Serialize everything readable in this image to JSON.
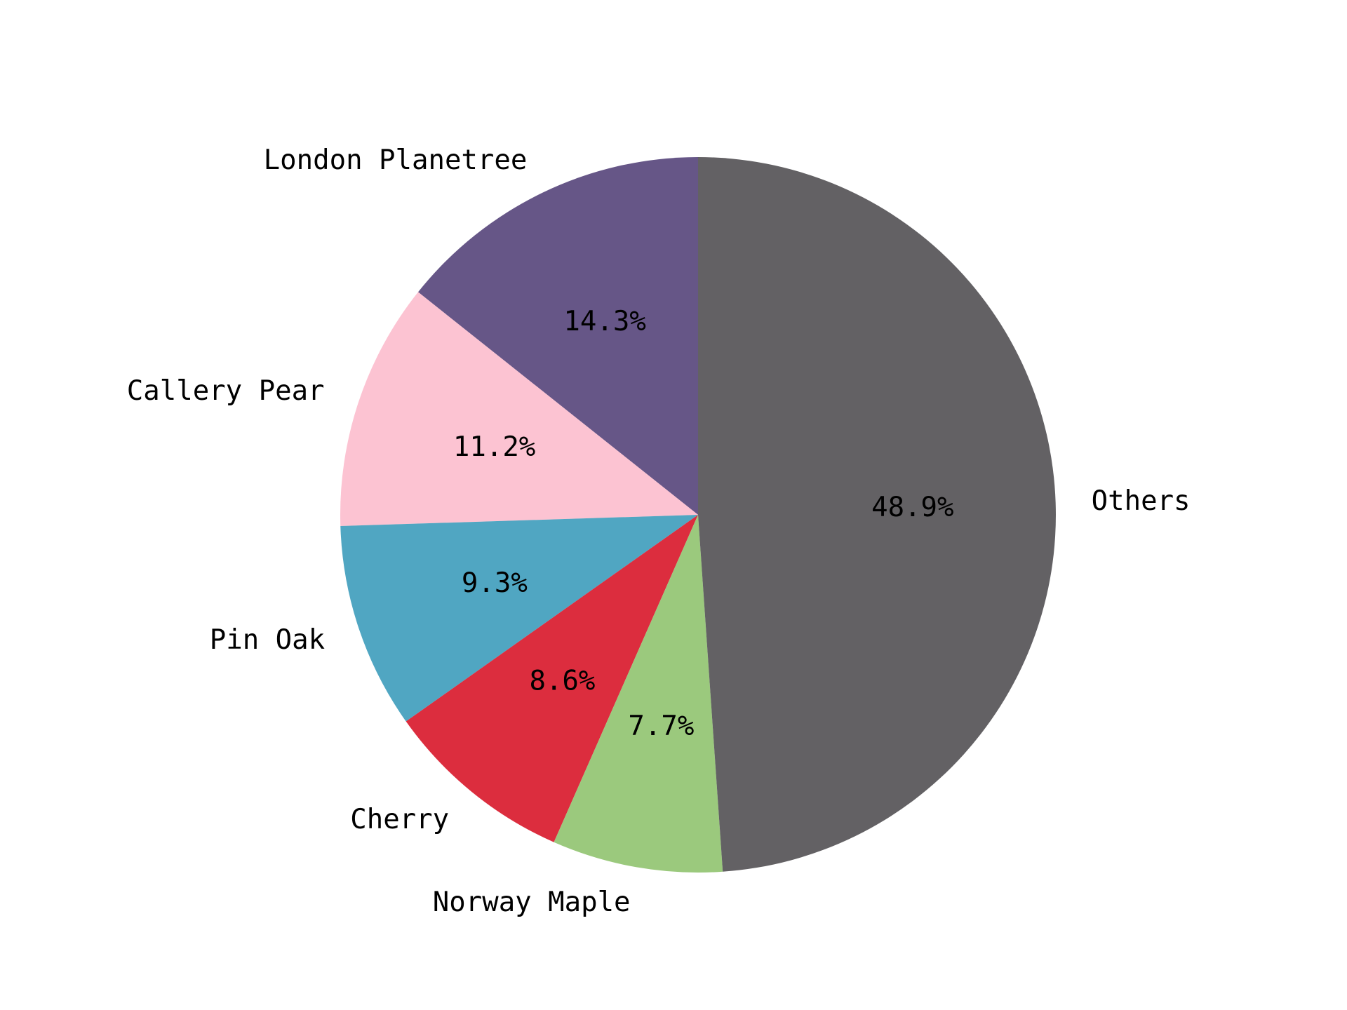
{
  "chart_data": {
    "type": "pie",
    "title": "",
    "start_angle_deg": 90,
    "direction": "counterclockwise",
    "slices": [
      {
        "label": "London Planetree",
        "value": 14.3,
        "pct_label": "14.3%",
        "color": "#665687"
      },
      {
        "label": "Callery Pear",
        "value": 11.2,
        "pct_label": "11.2%",
        "color": "#FCC3D2"
      },
      {
        "label": "Pin Oak",
        "value": 9.3,
        "pct_label": "9.3%",
        "color": "#50A6C2"
      },
      {
        "label": "Cherry",
        "value": 8.6,
        "pct_label": "8.6%",
        "color": "#DC2D3E"
      },
      {
        "label": "Norway Maple",
        "value": 7.7,
        "pct_label": "7.7%",
        "color": "#9BC97D"
      },
      {
        "label": "Others",
        "value": 48.9,
        "pct_label": "48.9%",
        "color": "#636164"
      }
    ]
  }
}
